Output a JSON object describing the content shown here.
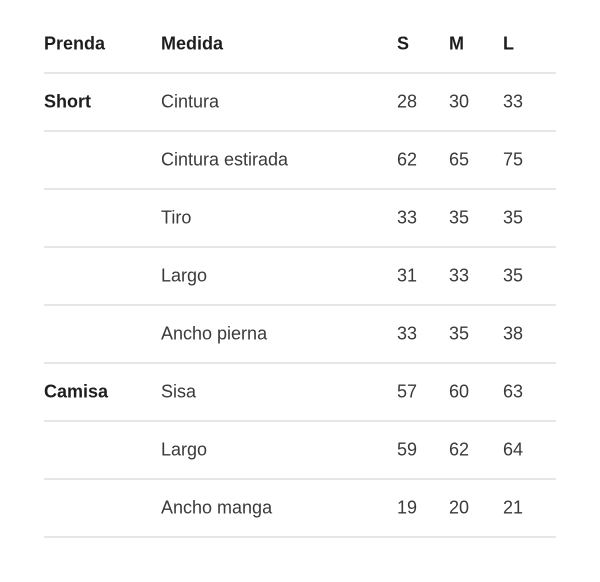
{
  "headers": [
    "Prenda",
    "Medida",
    "S",
    "M",
    "L"
  ],
  "rows": [
    {
      "prenda": "Short",
      "medida": "Cintura",
      "s": "28",
      "m": "30",
      "l": "33"
    },
    {
      "prenda": "",
      "medida": "Cintura estirada",
      "s": "62",
      "m": "65",
      "l": "75"
    },
    {
      "prenda": "",
      "medida": "Tiro",
      "s": "33",
      "m": "35",
      "l": "35"
    },
    {
      "prenda": "",
      "medida": "Largo",
      "s": "31",
      "m": "33",
      "l": "35"
    },
    {
      "prenda": "",
      "medida": "Ancho pierna",
      "s": "33",
      "m": "35",
      "l": "38"
    },
    {
      "prenda": "Camisa",
      "medida": "Sisa",
      "s": "57",
      "m": "60",
      "l": "63"
    },
    {
      "prenda": "",
      "medida": "Largo",
      "s": "59",
      "m": "62",
      "l": "64"
    },
    {
      "prenda": "",
      "medida": "Ancho manga",
      "s": "19",
      "m": "20",
      "l": "21"
    }
  ]
}
